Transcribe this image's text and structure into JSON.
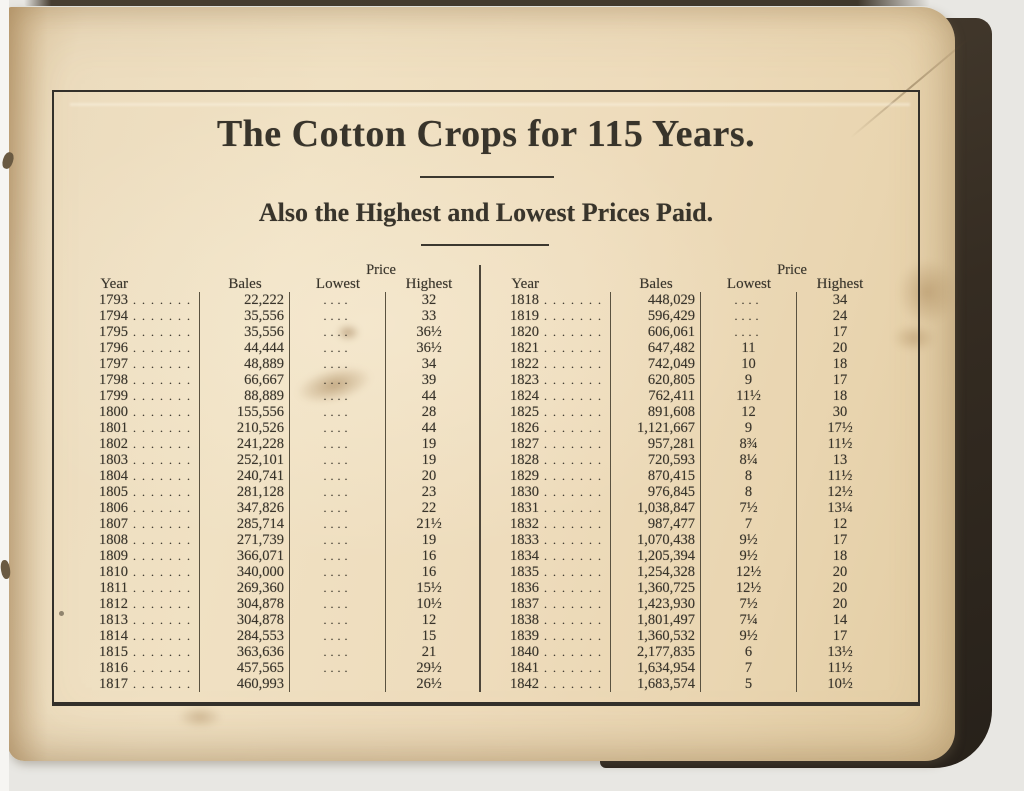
{
  "page": {
    "title": "The Cotton Crops for 115 Years.",
    "subtitle": "Also the Highest and Lowest Prices Paid."
  },
  "table": {
    "headers": {
      "price": "Price",
      "year": "Year",
      "bales": "Bales",
      "lowest": "Lowest",
      "highest": "Highest"
    },
    "year_leader": ".......",
    "lowest_leader": "....",
    "left_rows": [
      {
        "year": "1793",
        "bales": "22,222",
        "lowest": "....",
        "highest": "32"
      },
      {
        "year": "1794",
        "bales": "35,556",
        "lowest": "....",
        "highest": "33"
      },
      {
        "year": "1795",
        "bales": "35,556",
        "lowest": "....",
        "highest": "36½"
      },
      {
        "year": "1796",
        "bales": "44,444",
        "lowest": "....",
        "highest": "36½"
      },
      {
        "year": "1797",
        "bales": "48,889",
        "lowest": "....",
        "highest": "34"
      },
      {
        "year": "1798",
        "bales": "66,667",
        "lowest": "....",
        "highest": "39"
      },
      {
        "year": "1799",
        "bales": "88,889",
        "lowest": "....",
        "highest": "44"
      },
      {
        "year": "1800",
        "bales": "155,556",
        "lowest": "....",
        "highest": "28"
      },
      {
        "year": "1801",
        "bales": "210,526",
        "lowest": "....",
        "highest": "44"
      },
      {
        "year": "1802",
        "bales": "241,228",
        "lowest": "....",
        "highest": "19"
      },
      {
        "year": "1803",
        "bales": "252,101",
        "lowest": "....",
        "highest": "19"
      },
      {
        "year": "1804",
        "bales": "240,741",
        "lowest": "....",
        "highest": "20"
      },
      {
        "year": "1805",
        "bales": "281,128",
        "lowest": "....",
        "highest": "23"
      },
      {
        "year": "1806",
        "bales": "347,826",
        "lowest": "....",
        "highest": "22"
      },
      {
        "year": "1807",
        "bales": "285,714",
        "lowest": "....",
        "highest": "21½"
      },
      {
        "year": "1808",
        "bales": "271,739",
        "lowest": "....",
        "highest": "19"
      },
      {
        "year": "1809",
        "bales": "366,071",
        "lowest": "....",
        "highest": "16"
      },
      {
        "year": "1810",
        "bales": "340,000",
        "lowest": "....",
        "highest": "16"
      },
      {
        "year": "1811",
        "bales": "269,360",
        "lowest": "....",
        "highest": "15½"
      },
      {
        "year": "1812",
        "bales": "304,878",
        "lowest": "....",
        "highest": "10½"
      },
      {
        "year": "1813",
        "bales": "304,878",
        "lowest": "....",
        "highest": "12"
      },
      {
        "year": "1814",
        "bales": "284,553",
        "lowest": "....",
        "highest": "15"
      },
      {
        "year": "1815",
        "bales": "363,636",
        "lowest": "....",
        "highest": "21"
      },
      {
        "year": "1816",
        "bales": "457,565",
        "lowest": "....",
        "highest": "29½"
      },
      {
        "year": "1817",
        "bales": "460,993",
        "lowest": "",
        "highest": "26½"
      }
    ],
    "right_rows": [
      {
        "year": "1818",
        "bales": "448,029",
        "lowest": "....",
        "highest": "34"
      },
      {
        "year": "1819",
        "bales": "596,429",
        "lowest": "....",
        "highest": "24"
      },
      {
        "year": "1820",
        "bales": "606,061",
        "lowest": "....",
        "highest": "17"
      },
      {
        "year": "1821",
        "bales": "647,482",
        "lowest": "11",
        "highest": "20"
      },
      {
        "year": "1822",
        "bales": "742,049",
        "lowest": "10",
        "highest": "18"
      },
      {
        "year": "1823",
        "bales": "620,805",
        "lowest": "9",
        "highest": "17"
      },
      {
        "year": "1824",
        "bales": "762,411",
        "lowest": "11½",
        "highest": "18"
      },
      {
        "year": "1825",
        "bales": "891,608",
        "lowest": "12",
        "highest": "30"
      },
      {
        "year": "1826",
        "bales": "1,121,667",
        "lowest": "9",
        "highest": "17½"
      },
      {
        "year": "1827",
        "bales": "957,281",
        "lowest": "8¾",
        "highest": "11½"
      },
      {
        "year": "1828",
        "bales": "720,593",
        "lowest": "8¼",
        "highest": "13"
      },
      {
        "year": "1829",
        "bales": "870,415",
        "lowest": "8",
        "highest": "11½"
      },
      {
        "year": "1830",
        "bales": "976,845",
        "lowest": "8",
        "highest": "12½"
      },
      {
        "year": "1831",
        "bales": "1,038,847",
        "lowest": "7½",
        "highest": "13¼"
      },
      {
        "year": "1832",
        "bales": "987,477",
        "lowest": "7",
        "highest": "12"
      },
      {
        "year": "1833",
        "bales": "1,070,438",
        "lowest": "9½",
        "highest": "17"
      },
      {
        "year": "1834",
        "bales": "1,205,394",
        "lowest": "9½",
        "highest": "18"
      },
      {
        "year": "1835",
        "bales": "1,254,328",
        "lowest": "12½",
        "highest": "20"
      },
      {
        "year": "1836",
        "bales": "1,360,725",
        "lowest": "12½",
        "highest": "20"
      },
      {
        "year": "1837",
        "bales": "1,423,930",
        "lowest": "7½",
        "highest": "20"
      },
      {
        "year": "1838",
        "bales": "1,801,497",
        "lowest": "7¼",
        "highest": "14"
      },
      {
        "year": "1839",
        "bales": "1,360,532",
        "lowest": "9½",
        "highest": "17"
      },
      {
        "year": "1840",
        "bales": "2,177,835",
        "lowest": "6",
        "highest": "13½"
      },
      {
        "year": "1841",
        "bales": "1,634,954",
        "lowest": "7",
        "highest": "11½"
      },
      {
        "year": "1842",
        "bales": "1,683,574",
        "lowest": "5",
        "highest": "10½"
      }
    ]
  },
  "colors": {
    "scan_background": "#e8e7e3",
    "page_paper": "#ecdcbe",
    "ink": "#38342b",
    "book_cover": "#352c22",
    "table_rule": "#5a5240"
  }
}
